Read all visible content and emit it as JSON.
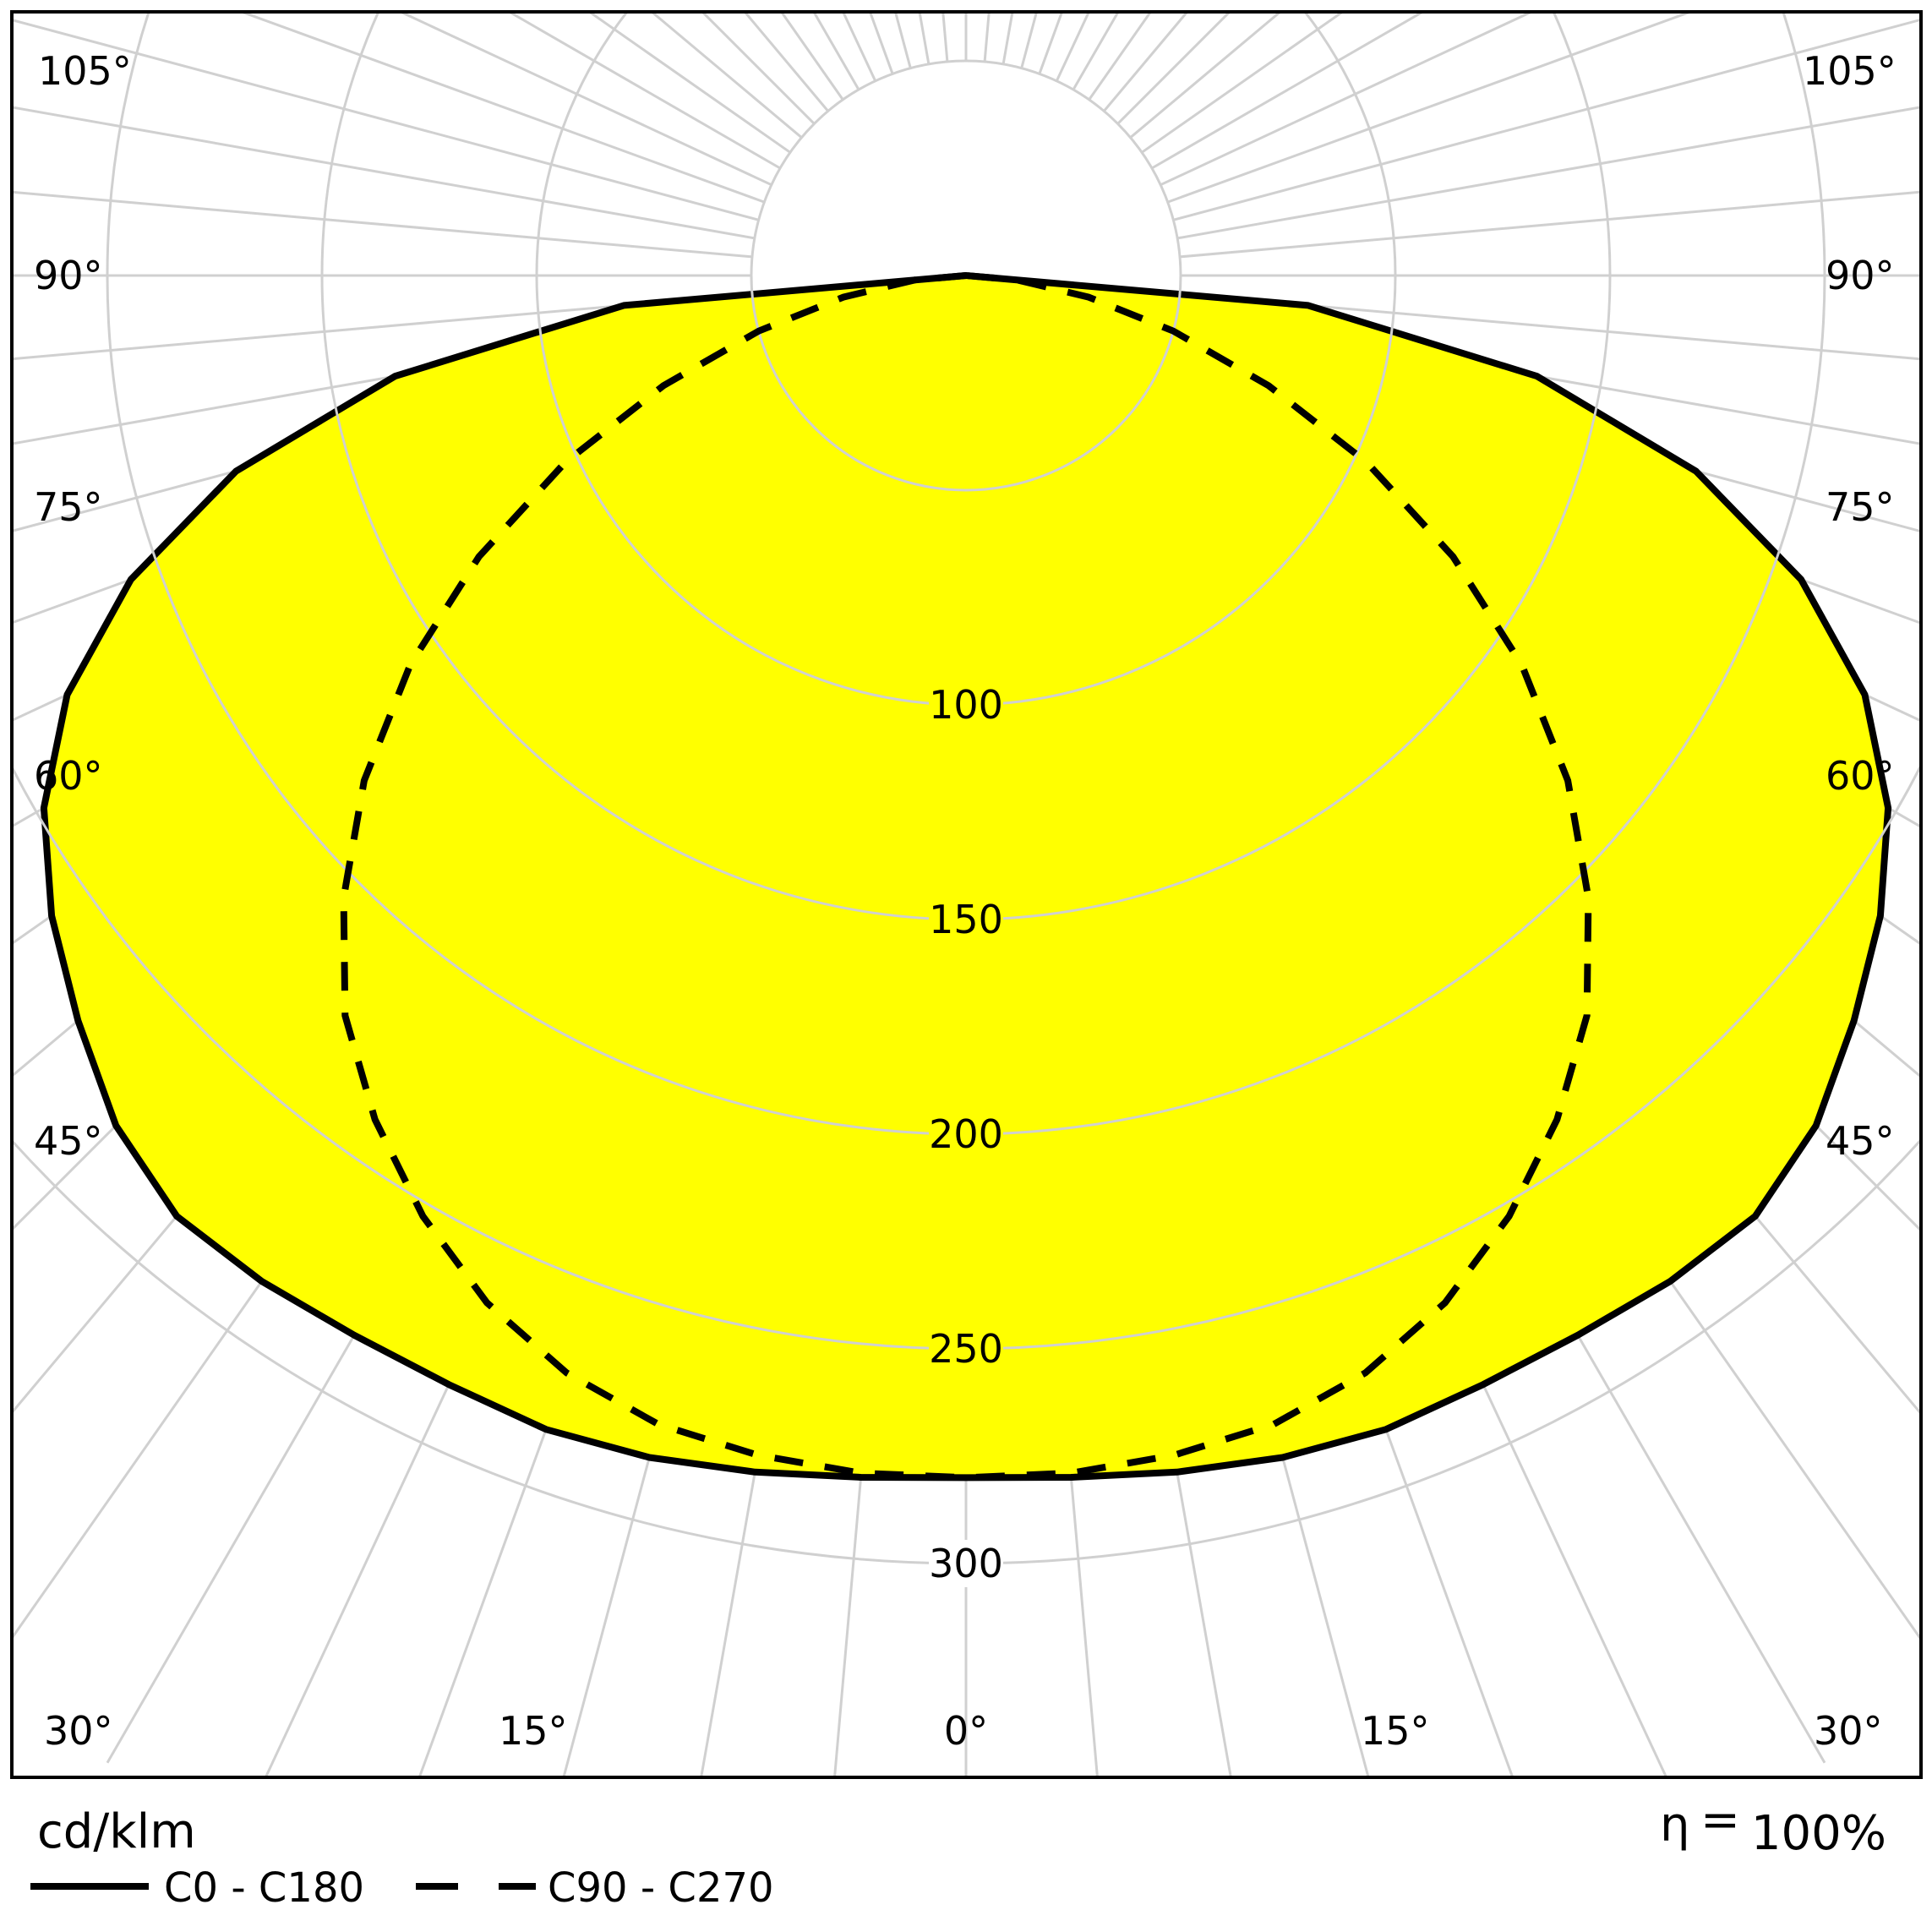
{
  "chart_data": {
    "type": "polar",
    "unit_label": "cd/klm",
    "efficiency_symbol": "η",
    "efficiency_equals": "=",
    "efficiency_value": "100%",
    "radial_ticks": [
      100,
      150,
      200,
      250,
      300
    ],
    "radial_tick_labels": [
      "100",
      "150",
      "200",
      "250",
      "300"
    ],
    "radial_max": 400,
    "angle_ticks": [
      0,
      15,
      30,
      45,
      60,
      75,
      90,
      105
    ],
    "angle_tick_labels": {
      "0": "0°",
      "15": "15°",
      "30": "30°",
      "45": "45°",
      "60": "60°",
      "75": "75°",
      "90": "90°",
      "105": "105°"
    },
    "grid": true,
    "legend_position": "bottom-left",
    "series": [
      {
        "name": "C0 - C180",
        "style": "solid",
        "fill": "#ffff00",
        "angles": [
          0,
          5,
          10,
          15,
          20,
          25,
          30,
          35,
          40,
          45,
          50,
          55,
          60,
          65,
          70,
          75,
          80,
          85,
          90
        ],
        "values": [
          280,
          281,
          283,
          285,
          286,
          285,
          285,
          286,
          286,
          280,
          270,
          260,
          248,
          231,
          207,
          176,
          135,
          80,
          0
        ]
      },
      {
        "name": "C90 - C270",
        "style": "dashed",
        "angles": [
          0,
          5,
          10,
          15,
          20,
          25,
          30,
          35,
          40,
          45,
          50,
          55,
          60,
          65,
          70,
          75,
          80,
          85,
          90
        ],
        "values": [
          280,
          280,
          279,
          277,
          272,
          264,
          253,
          240,
          225,
          205,
          183,
          158,
          131,
          103,
          75,
          50,
          29,
          12,
          0
        ]
      }
    ]
  }
}
